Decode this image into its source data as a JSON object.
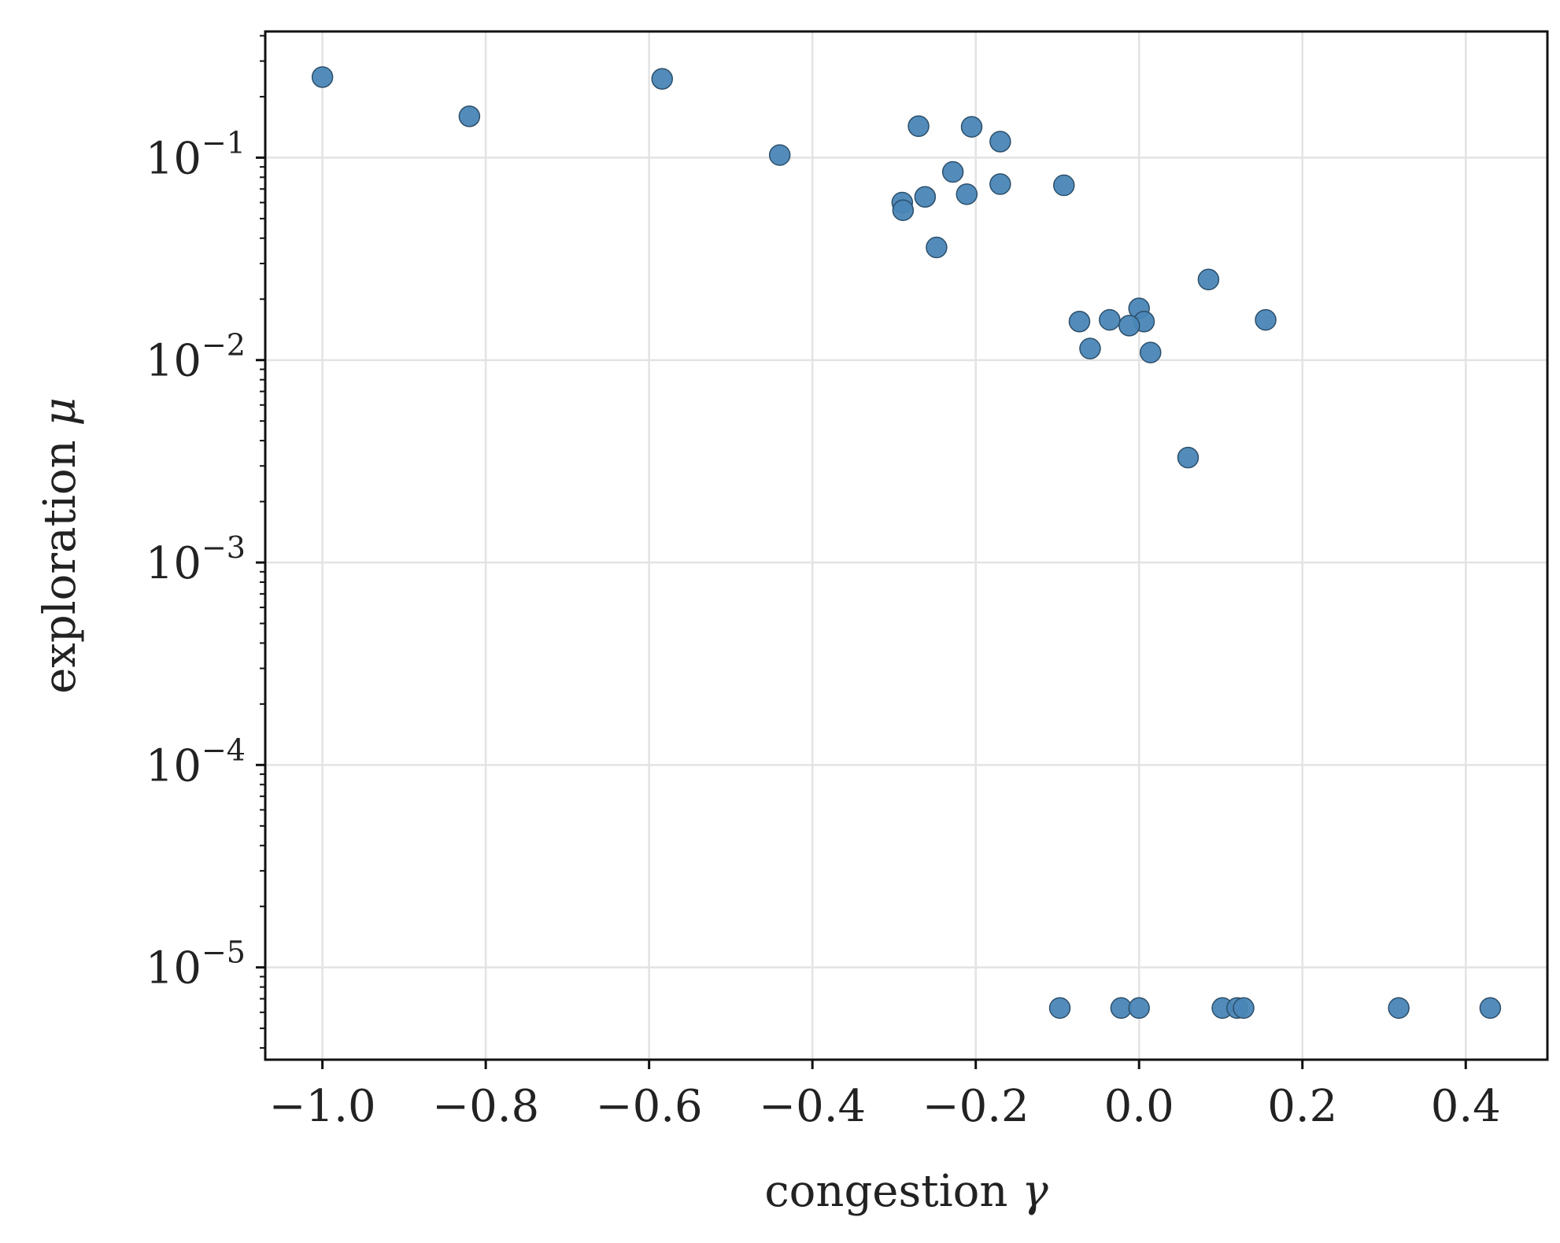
{
  "chart_data": {
    "type": "scatter",
    "xlabel": "congestion",
    "xlabel_symbol": "γ",
    "ylabel": "exploration",
    "ylabel_symbol": "μ",
    "xlim": [
      -1.07,
      0.5
    ],
    "ylim": [
      3.5e-06,
      0.42
    ],
    "yscale": "log",
    "grid": true,
    "marker_color": "#4a86b6",
    "marker_edge_color": "#2c4f6b",
    "x_ticks": [
      {
        "value": -1.0,
        "label": "−1.0"
      },
      {
        "value": -0.8,
        "label": "−0.8"
      },
      {
        "value": -0.6,
        "label": "−0.6"
      },
      {
        "value": -0.4,
        "label": "−0.4"
      },
      {
        "value": -0.2,
        "label": "−0.2"
      },
      {
        "value": 0.0,
        "label": "0.0"
      },
      {
        "value": 0.2,
        "label": "0.2"
      },
      {
        "value": 0.4,
        "label": "0.4"
      }
    ],
    "y_ticks": [
      {
        "value": 0.1,
        "base": "10",
        "exp": "−1"
      },
      {
        "value": 0.01,
        "base": "10",
        "exp": "−2"
      },
      {
        "value": 0.001,
        "base": "10",
        "exp": "−3"
      },
      {
        "value": 0.0001,
        "base": "10",
        "exp": "−4"
      },
      {
        "value": 1e-05,
        "base": "10",
        "exp": "−5"
      }
    ],
    "points": [
      {
        "x": -1.0,
        "y": 0.25
      },
      {
        "x": -0.82,
        "y": 0.16
      },
      {
        "x": -0.584,
        "y": 0.245
      },
      {
        "x": -0.44,
        "y": 0.103
      },
      {
        "x": -0.27,
        "y": 0.143
      },
      {
        "x": -0.205,
        "y": 0.142
      },
      {
        "x": -0.17,
        "y": 0.12
      },
      {
        "x": -0.228,
        "y": 0.085
      },
      {
        "x": -0.17,
        "y": 0.074
      },
      {
        "x": -0.092,
        "y": 0.073
      },
      {
        "x": -0.211,
        "y": 0.066
      },
      {
        "x": -0.262,
        "y": 0.064
      },
      {
        "x": -0.29,
        "y": 0.06
      },
      {
        "x": -0.289,
        "y": 0.055
      },
      {
        "x": -0.248,
        "y": 0.036
      },
      {
        "x": 0.085,
        "y": 0.025
      },
      {
        "x": 0.0,
        "y": 0.018
      },
      {
        "x": 0.155,
        "y": 0.0158
      },
      {
        "x": -0.073,
        "y": 0.0155
      },
      {
        "x": -0.036,
        "y": 0.0158
      },
      {
        "x": 0.006,
        "y": 0.0155
      },
      {
        "x": -0.012,
        "y": 0.0148
      },
      {
        "x": -0.06,
        "y": 0.0114
      },
      {
        "x": 0.014,
        "y": 0.0109
      },
      {
        "x": 0.06,
        "y": 0.0033
      },
      {
        "x": -0.097,
        "y": 6.3e-06
      },
      {
        "x": -0.022,
        "y": 6.3e-06
      },
      {
        "x": 0.0,
        "y": 6.3e-06
      },
      {
        "x": 0.102,
        "y": 6.3e-06
      },
      {
        "x": 0.12,
        "y": 6.3e-06
      },
      {
        "x": 0.128,
        "y": 6.3e-06
      },
      {
        "x": 0.318,
        "y": 6.3e-06
      },
      {
        "x": 0.43,
        "y": 6.3e-06
      }
    ]
  }
}
